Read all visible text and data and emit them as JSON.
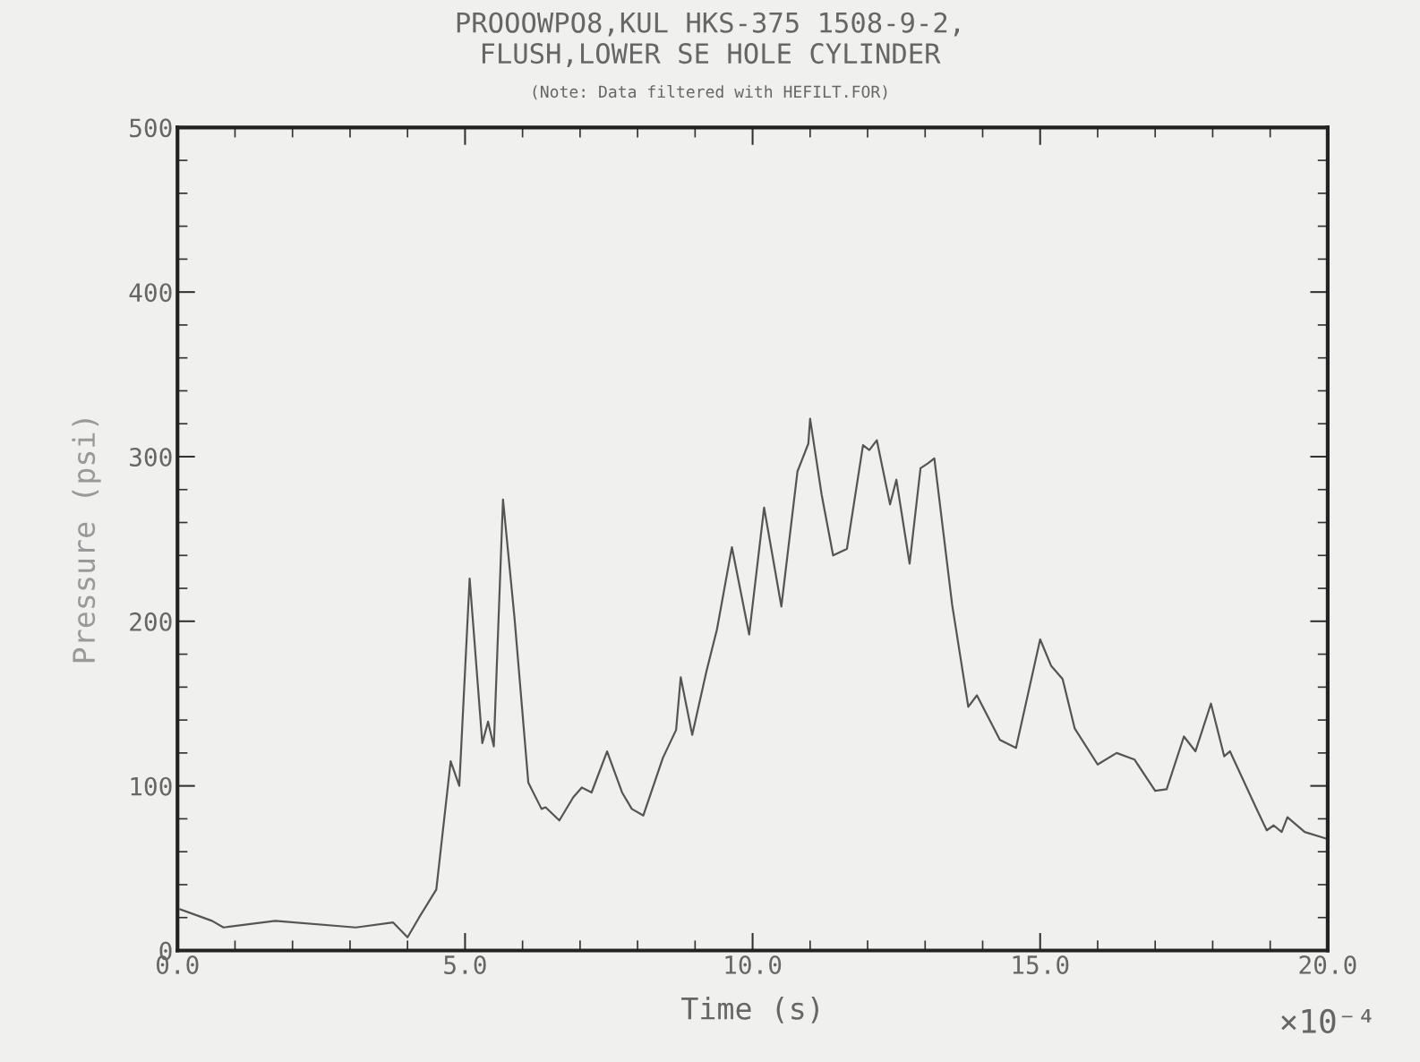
{
  "chart_data": {
    "type": "line",
    "title": "PROOOWPO8,KUL HKS-375 1508-9-2,\nFLUSH,LOWER SE HOLE CYLINDER",
    "subtitle": "(Note: Data filtered with HEFILT.FOR)",
    "xlabel": "Time (s)",
    "ylabel": "Pressure (psi)",
    "annotations": [
      "×10⁻⁴"
    ],
    "xlim": [
      0,
      20
    ],
    "ylim": [
      0,
      500
    ],
    "xticks": [
      {
        "value": 0,
        "label": "0.0"
      },
      {
        "value": 5,
        "label": "5.0"
      },
      {
        "value": 10,
        "label": "10.0"
      },
      {
        "value": 15,
        "label": "15.0"
      },
      {
        "value": 20,
        "label": "20.0"
      }
    ],
    "yticks": [
      0,
      100,
      200,
      300,
      400,
      500
    ],
    "grid": false,
    "marker": "none",
    "line_style": "solid",
    "series": [
      {
        "color": "#555555",
        "x": [
          0.05,
          0.6,
          0.8,
          1.7,
          3.1,
          3.75,
          4.0,
          4.2,
          4.5,
          4.75,
          4.9,
          5.08,
          5.3,
          5.4,
          5.5,
          5.66,
          5.86,
          6.1,
          6.33,
          6.4,
          6.64,
          6.88,
          7.03,
          7.2,
          7.47,
          7.73,
          7.9,
          8.1,
          8.44,
          8.67,
          8.75,
          8.95,
          9.2,
          9.38,
          9.64,
          9.94,
          10.2,
          10.5,
          10.78,
          10.97,
          11.0,
          11.2,
          11.4,
          11.64,
          11.92,
          12.03,
          12.16,
          12.39,
          12.5,
          12.73,
          12.92,
          13.05,
          13.16,
          13.47,
          13.75,
          13.9,
          14.3,
          14.58,
          15.0,
          15.19,
          15.39,
          15.6,
          16.0,
          16.33,
          16.64,
          17.0,
          17.2,
          17.5,
          17.7,
          17.97,
          18.2,
          18.3,
          18.75,
          18.94,
          19.06,
          19.2,
          19.3,
          19.6,
          19.97
        ],
        "values": [
          25,
          18,
          14,
          18,
          14,
          17,
          8,
          20,
          37,
          115,
          100,
          226,
          126,
          139,
          124,
          274,
          202,
          102,
          86,
          87,
          79,
          93,
          99,
          96,
          121,
          96,
          86,
          82,
          117,
          134,
          166,
          131,
          170,
          195,
          245,
          192,
          269,
          209,
          291,
          308,
          323,
          277,
          240,
          244,
          307,
          304,
          310,
          271,
          286,
          235,
          293,
          296,
          299,
          210,
          148,
          155,
          128,
          123,
          189,
          173,
          165,
          135,
          113,
          120,
          116,
          97,
          98,
          130,
          121,
          150,
          118,
          121,
          87,
          73,
          76,
          72,
          81,
          72,
          68
        ]
      }
    ]
  }
}
